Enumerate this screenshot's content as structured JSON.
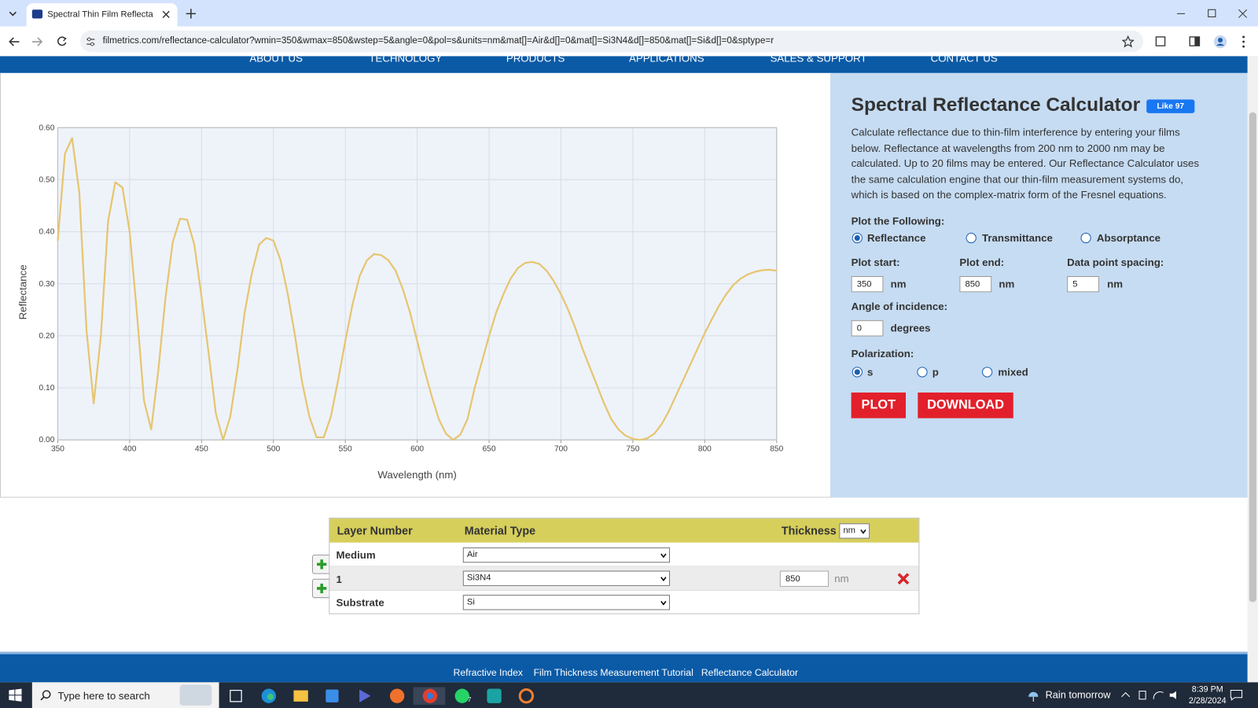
{
  "browser": {
    "tab_title": "Spectral Thin Film Reflectance C",
    "url": "filmetrics.com/reflectance-calculator?wmin=350&wmax=850&wstep=5&angle=0&pol=s&units=nm&mat[]=Air&d[]=0&mat[]=Si3N4&d[]=850&mat[]=Si&d[]=0&sptype=r"
  },
  "nav": [
    "ABOUT US",
    "TECHNOLOGY",
    "PRODUCTS",
    "APPLICATIONS",
    "SALES & SUPPORT",
    "CONTACT US"
  ],
  "chart_data": {
    "type": "line",
    "x_label": "Wavelength (nm)",
    "y_label": "Reflectance",
    "color": "#e6c570",
    "grid": true,
    "x": [
      350,
      355,
      360,
      365,
      370,
      375,
      380,
      385,
      390,
      395,
      400,
      405,
      410,
      415,
      420,
      425,
      430,
      435,
      440,
      445,
      450,
      455,
      460,
      465,
      470,
      475,
      480,
      485,
      490,
      495,
      500,
      505,
      510,
      515,
      520,
      525,
      530,
      535,
      540,
      545,
      550,
      555,
      560,
      565,
      570,
      575,
      580,
      585,
      590,
      595,
      600,
      605,
      610,
      615,
      620,
      625,
      630,
      635,
      640,
      645,
      650,
      655,
      660,
      665,
      670,
      675,
      680,
      685,
      690,
      695,
      700,
      705,
      710,
      715,
      720,
      725,
      730,
      735,
      740,
      745,
      750,
      755,
      760,
      765,
      770,
      775,
      780,
      785,
      790,
      795,
      800,
      805,
      810,
      815,
      820,
      825,
      830,
      835,
      840,
      845,
      850
    ],
    "values": [
      0.383,
      0.55,
      0.58,
      0.475,
      0.21,
      0.07,
      0.2,
      0.42,
      0.495,
      0.485,
      0.4,
      0.245,
      0.075,
      0.02,
      0.135,
      0.275,
      0.38,
      0.425,
      0.423,
      0.375,
      0.275,
      0.165,
      0.05,
      0.0,
      0.045,
      0.135,
      0.245,
      0.32,
      0.375,
      0.388,
      0.383,
      0.345,
      0.28,
      0.2,
      0.11,
      0.045,
      0.005,
      0.005,
      0.045,
      0.115,
      0.19,
      0.26,
      0.315,
      0.345,
      0.357,
      0.355,
      0.345,
      0.325,
      0.29,
      0.245,
      0.19,
      0.135,
      0.085,
      0.04,
      0.012,
      0.0,
      0.01,
      0.04,
      0.1,
      0.15,
      0.2,
      0.245,
      0.28,
      0.31,
      0.33,
      0.34,
      0.342,
      0.338,
      0.325,
      0.305,
      0.28,
      0.25,
      0.215,
      0.175,
      0.14,
      0.105,
      0.07,
      0.04,
      0.02,
      0.008,
      0.002,
      0.0,
      0.003,
      0.012,
      0.03,
      0.055,
      0.085,
      0.115,
      0.145,
      0.175,
      0.205,
      0.232,
      0.258,
      0.28,
      0.298,
      0.31,
      0.318,
      0.323,
      0.326,
      0.327,
      0.325
    ],
    "xlim": [
      350,
      850
    ],
    "xticks": [
      350,
      400,
      450,
      500,
      550,
      600,
      650,
      700,
      750,
      800,
      850
    ],
    "ylim": [
      0,
      0.6
    ],
    "yticks": [
      {
        "value": 0,
        "label": "0.00"
      },
      {
        "value": 0.1,
        "label": "0.10"
      },
      {
        "value": 0.2,
        "label": "0.20"
      },
      {
        "value": 0.3,
        "label": "0.30"
      },
      {
        "value": 0.4,
        "label": "0.40"
      },
      {
        "value": 0.5,
        "label": "0.50"
      },
      {
        "value": 0.6,
        "label": "0.60"
      }
    ]
  },
  "calculator": {
    "title": "Spectral Reflectance Calculator",
    "like": "Like 97",
    "description": "Calculate reflectance due to thin-film interference by entering your films below. Reflectance at wavelengths from 200 nm to 2000 nm may be calculated. Up to 20 films may be entered. Our Reflectance Calculator uses the same calculation engine that our thin-film measurement systems do, which is based on the complex-matrix form of the Fresnel equations.",
    "plot_heading": "Plot the Following:",
    "plot_options": [
      "Reflectance",
      "Transmittance",
      "Absorptance"
    ],
    "plot_start_label": "Plot start:",
    "plot_start": 350,
    "plot_end_label": "Plot end:",
    "plot_end": 850,
    "spacing_label": "Data point spacing:",
    "spacing": 5,
    "unit": "nm",
    "angle_label": "Angle of incidence:",
    "angle": 0,
    "angle_unit": "degrees",
    "polarization_label": "Polarization:",
    "polarization_options": [
      "s",
      "p",
      "mixed"
    ],
    "plot_button": "PLOT",
    "download_button": "DOWNLOAD"
  },
  "layers": {
    "headers": [
      "Layer Number",
      "Material Type",
      "Thickness"
    ],
    "unit": "nm",
    "rows": [
      {
        "layer": "Medium",
        "material": "Air"
      },
      {
        "layer": "1",
        "material": "Si3N4",
        "thickness": 850
      },
      {
        "layer": "Substrate",
        "material": "Si"
      }
    ]
  },
  "footer": [
    "Refractive Index",
    "Film Thickness Measurement Tutorial",
    "Reflectance Calculator"
  ],
  "taskbar": {
    "search": "Type here to search",
    "weather": "Rain tomorrow",
    "time": "8:39 PM",
    "date": "2/28/2024",
    "badge": 7
  }
}
